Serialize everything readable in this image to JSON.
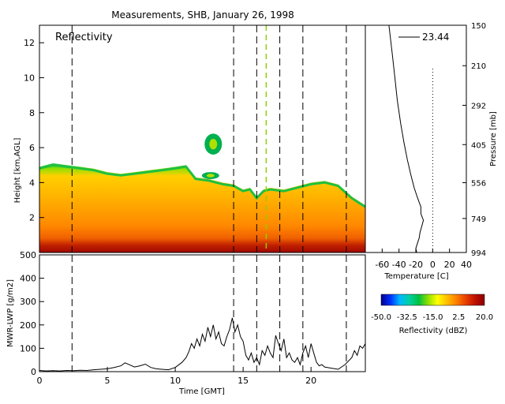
{
  "figure": {
    "title": "Measurements, SHB, January 26, 1998"
  },
  "chart_data": [
    {
      "type": "heatmap",
      "title": "Reflectivity",
      "xlabel": "",
      "ylabel": "Height [km,AGL]",
      "xlim": [
        0,
        24
      ],
      "ylim": [
        0,
        13
      ],
      "yticks": [
        2,
        4,
        6,
        8,
        10,
        12
      ],
      "ytick_labels": [
        "2",
        "4",
        "6",
        "8",
        "10",
        "12"
      ],
      "cloud_top_km": [
        {
          "t": 0.0,
          "top": 4.9
        },
        {
          "t": 1.0,
          "top": 5.1
        },
        {
          "t": 2.0,
          "top": 5.0
        },
        {
          "t": 3.0,
          "top": 4.9
        },
        {
          "t": 4.0,
          "top": 4.8
        },
        {
          "t": 5.0,
          "top": 4.6
        },
        {
          "t": 6.0,
          "top": 4.5
        },
        {
          "t": 7.0,
          "top": 4.6
        },
        {
          "t": 8.0,
          "top": 4.7
        },
        {
          "t": 9.0,
          "top": 4.8
        },
        {
          "t": 10.0,
          "top": 4.9
        },
        {
          "t": 10.8,
          "top": 5.0
        },
        {
          "t": 11.5,
          "top": 4.3
        },
        {
          "t": 12.5,
          "top": 4.2
        },
        {
          "t": 13.5,
          "top": 4.0
        },
        {
          "t": 14.3,
          "top": 3.9
        },
        {
          "t": 15.0,
          "top": 3.6
        },
        {
          "t": 15.5,
          "top": 3.7
        },
        {
          "t": 16.0,
          "top": 3.2
        },
        {
          "t": 16.5,
          "top": 3.6
        },
        {
          "t": 17.0,
          "top": 3.7
        },
        {
          "t": 18.0,
          "top": 3.6
        },
        {
          "t": 19.0,
          "top": 3.8
        },
        {
          "t": 20.0,
          "top": 4.0
        },
        {
          "t": 21.0,
          "top": 4.1
        },
        {
          "t": 22.0,
          "top": 3.9
        },
        {
          "t": 23.0,
          "top": 3.2
        },
        {
          "t": 24.0,
          "top": 2.7
        }
      ],
      "elevated_cloud_km": [
        {
          "t": 12.8,
          "bottom": 5.6,
          "top": 6.8
        },
        {
          "t": 12.6,
          "bottom": 4.2,
          "top": 4.6
        }
      ],
      "colorbar": {
        "label": "Reflectivity (dBZ)",
        "range": [
          -50.0,
          20.0
        ],
        "ticks": [
          -50.0,
          -32.5,
          -15.0,
          2.5,
          20.0
        ],
        "tick_labels": [
          "-50.0",
          "-32.5",
          "-15.0",
          "2.5",
          "20.0"
        ],
        "colors": [
          "#000090",
          "#0030ff",
          "#00b8ff",
          "#00d0a0",
          "#00c040",
          "#90e000",
          "#ffff00",
          "#ffc000",
          "#ff8000",
          "#e84000",
          "#c01000",
          "#8a0000"
        ]
      },
      "event_lines_gmt": [
        2.4,
        14.3,
        16.0,
        17.7,
        19.4,
        22.6
      ],
      "highlight_line_gmt": 16.7
    },
    {
      "type": "line",
      "title": "",
      "xlabel": "Temperature [C]",
      "ylabel": "Pressure [mb]",
      "xlim": [
        -80,
        40
      ],
      "xticks": [
        -60,
        -40,
        -20,
        0,
        20,
        40
      ],
      "xtick_labels": [
        "-60",
        "-40",
        "-20",
        "0",
        "20",
        "40"
      ],
      "ylim": [
        994,
        150
      ],
      "yticks": [
        150,
        210,
        292,
        405,
        556,
        749,
        994
      ],
      "ytick_labels": [
        "150",
        "210",
        "292",
        "405",
        "556",
        "749",
        "994"
      ],
      "legend": {
        "label": "23.44"
      },
      "series": [
        {
          "points": [
            {
              "t": -52,
              "p": 150
            },
            {
              "t": -48,
              "p": 190
            },
            {
              "t": -45,
              "p": 230
            },
            {
              "t": -42,
              "p": 280
            },
            {
              "t": -38,
              "p": 340
            },
            {
              "t": -34,
              "p": 400
            },
            {
              "t": -30,
              "p": 460
            },
            {
              "t": -26,
              "p": 520
            },
            {
              "t": -22,
              "p": 580
            },
            {
              "t": -18,
              "p": 630
            },
            {
              "t": -14,
              "p": 680
            },
            {
              "t": -14,
              "p": 720
            },
            {
              "t": -11,
              "p": 760
            },
            {
              "t": -13,
              "p": 800
            },
            {
              "t": -15,
              "p": 840
            },
            {
              "t": -16,
              "p": 880
            },
            {
              "t": -18,
              "p": 920
            },
            {
              "t": -20,
              "p": 960
            },
            {
              "t": -19,
              "p": 994
            }
          ]
        }
      ],
      "reference_line_C": 0
    },
    {
      "type": "line",
      "title": "",
      "xlabel": "Time [GMT]",
      "ylabel": "MWR-LWP [g/m2]",
      "xlim": [
        0,
        24
      ],
      "xticks": [
        0,
        5,
        10,
        15,
        20
      ],
      "xtick_labels": [
        "0",
        "5",
        "10",
        "15",
        "20"
      ],
      "ylim": [
        0,
        500
      ],
      "yticks": [
        0,
        100,
        200,
        300,
        400,
        500
      ],
      "ytick_labels": [
        "0",
        "100",
        "200",
        "300",
        "400",
        "500"
      ],
      "series": [
        {
          "x": [
            0.0,
            0.5,
            1.0,
            1.5,
            2.0,
            2.5,
            3.0,
            3.5,
            4.0,
            4.5,
            5.0,
            5.5,
            6.0,
            6.3,
            6.6,
            7.0,
            7.4,
            7.8,
            8.2,
            8.6,
            9.0,
            9.5,
            10.0,
            10.5,
            10.8,
            11.0,
            11.2,
            11.4,
            11.6,
            11.8,
            12.0,
            12.2,
            12.4,
            12.6,
            12.8,
            13.0,
            13.2,
            13.4,
            13.6,
            13.8,
            14.0,
            14.2,
            14.4,
            14.6,
            14.8,
            15.0,
            15.2,
            15.4,
            15.6,
            15.8,
            16.0,
            16.2,
            16.4,
            16.6,
            16.8,
            17.0,
            17.2,
            17.4,
            17.6,
            17.8,
            18.0,
            18.2,
            18.4,
            18.6,
            18.8,
            19.0,
            19.2,
            19.4,
            19.6,
            19.8,
            20.0,
            20.2,
            20.4,
            20.6,
            20.8,
            21.0,
            21.5,
            22.0,
            22.5,
            23.0,
            23.2,
            23.4,
            23.6,
            23.8,
            24.0
          ],
          "y": [
            5,
            3,
            4,
            3,
            5,
            4,
            6,
            5,
            8,
            10,
            12,
            18,
            25,
            38,
            30,
            20,
            25,
            32,
            18,
            12,
            10,
            8,
            18,
            40,
            60,
            85,
            120,
            100,
            140,
            110,
            160,
            130,
            190,
            150,
            200,
            140,
            170,
            120,
            110,
            150,
            180,
            230,
            170,
            200,
            150,
            130,
            70,
            50,
            80,
            40,
            60,
            30,
            90,
            70,
            110,
            80,
            60,
            155,
            120,
            90,
            140,
            60,
            80,
            50,
            40,
            60,
            30,
            80,
            110,
            60,
            120,
            80,
            40,
            25,
            30,
            20,
            15,
            10,
            30,
            60,
            90,
            70,
            110,
            100,
            120
          ]
        }
      ],
      "event_lines_gmt": [
        2.4,
        14.3,
        16.0,
        17.7,
        19.4,
        22.6
      ]
    }
  ]
}
